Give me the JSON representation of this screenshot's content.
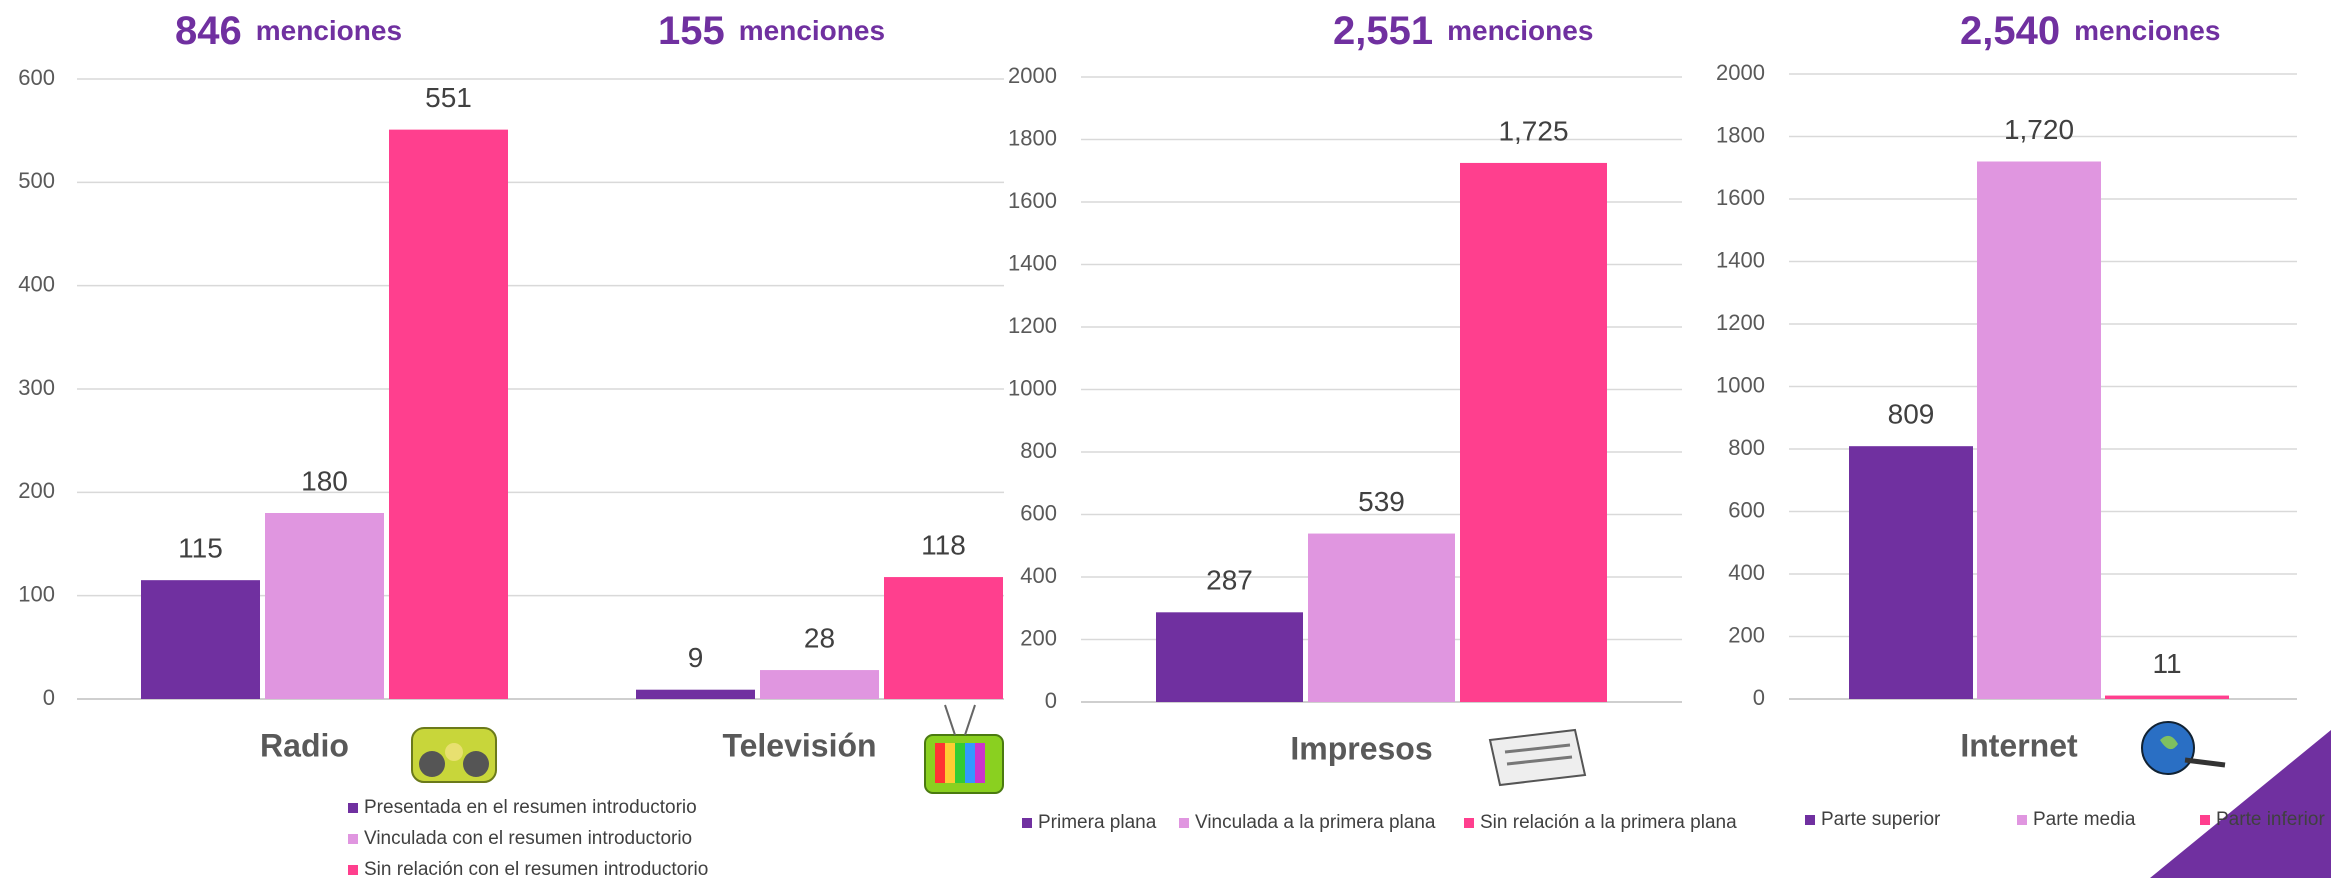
{
  "chart_data": [
    {
      "type": "bar",
      "categories": [
        "Radio",
        "Televisión"
      ],
      "annotations": [
        {
          "number": "846",
          "text": "menciones"
        },
        {
          "number": "155",
          "text": "menciones"
        }
      ],
      "series": [
        {
          "name": "Presentada en el resumen introductorio",
          "color": "#7030a0",
          "values": [
            115,
            9
          ]
        },
        {
          "name": "Vinculada con el resumen introductorio",
          "color": "#e096e0",
          "values": [
            180,
            28
          ]
        },
        {
          "name": "Sin relación con el resumen introductorio",
          "color": "#ff3f8e",
          "values": [
            551,
            118
          ]
        }
      ],
      "ylim": [
        0,
        600
      ],
      "yticks": [
        0,
        100,
        200,
        300,
        400,
        500,
        600
      ],
      "grid": true
    },
    {
      "type": "bar",
      "categories": [
        "Impresos"
      ],
      "annotations": [
        {
          "number": "2,551",
          "text": "menciones"
        }
      ],
      "series": [
        {
          "name": "Primera plana",
          "color": "#7030a0",
          "values": [
            287
          ]
        },
        {
          "name": "Vinculada a la primera plana",
          "color": "#e096e0",
          "values": [
            539
          ]
        },
        {
          "name": "Sin relación a la primera plana",
          "color": "#ff3f8e",
          "values": [
            1725
          ],
          "value_labels": [
            "1,725"
          ]
        }
      ],
      "ylim": [
        0,
        2000
      ],
      "yticks": [
        0,
        200,
        400,
        600,
        800,
        1000,
        1200,
        1400,
        1600,
        1800,
        2000
      ],
      "grid": true
    },
    {
      "type": "bar",
      "categories": [
        "Internet"
      ],
      "annotations": [
        {
          "number": "2,540",
          "text": "menciones"
        }
      ],
      "series": [
        {
          "name": "Parte superior",
          "color": "#7030a0",
          "values": [
            809
          ]
        },
        {
          "name": "Parte media",
          "color": "#e096e0",
          "values": [
            1720
          ],
          "value_labels": [
            "1,720"
          ]
        },
        {
          "name": "Parte inferior",
          "color": "#ff3f8e",
          "values": [
            11
          ]
        }
      ],
      "ylim": [
        0,
        2000
      ],
      "yticks": [
        0,
        200,
        400,
        600,
        800,
        1000,
        1200,
        1400,
        1600,
        1800,
        2000
      ],
      "grid": true
    }
  ]
}
